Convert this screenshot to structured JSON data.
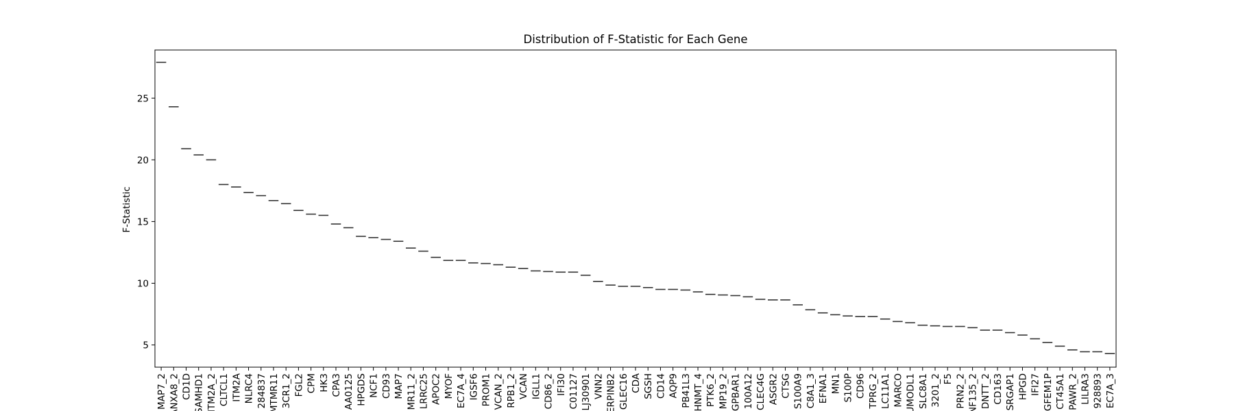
{
  "chart_data": {
    "type": "box",
    "title": "Distribution of F-Statistic for Each Gene",
    "xlabel": "",
    "ylabel": "F-Statistic",
    "ylim": [
      3.2,
      28.9
    ],
    "yticks": [
      5,
      10,
      15,
      20,
      25
    ],
    "grid": false,
    "legend": "none",
    "line_color": "#333333",
    "categories": [
      "MAP7_2",
      "ANXA8_2",
      "CD1D",
      "SAMHD1",
      "ITM2A_2",
      "CLTCL1",
      "ITM2A",
      "NLRC4",
      "284837",
      "MTMR11",
      "3CR1_2",
      "FGL2",
      "CPM",
      "HK3",
      "CPA3",
      "AA0125",
      "HPGDS",
      "NCF1",
      "CD93",
      "MAP7",
      "MR11_2",
      "LRRC25",
      "APOC2",
      "MYOF",
      "EC7A_4",
      "IGSF6",
      "PROM1",
      "VCAN_2",
      "RPB1_2",
      "VCAN",
      "IGLL1",
      "CD86_2",
      "IFI30",
      "C01127",
      "LJ30901",
      "VNN2",
      "ERPINB2",
      "GLEC16",
      "CDA",
      "SGSH",
      "CD14",
      "AQP9",
      "PB41L3",
      "HNMT_4",
      "PTK6_2",
      "MP19_2",
      "GPBAR1",
      "100A12",
      "CLEC4G",
      "ASGR2",
      "CTSG",
      "S100A9",
      "C8A1_3",
      "EFNA1",
      "MN1",
      "S100P",
      "CD96",
      "TPRG_2",
      "LC11A1",
      "MARCO",
      "UMODL1",
      "SLC8A1",
      "3201_2",
      "F5",
      "PRN2_2",
      "NF135_2",
      "DNTT_2",
      "CD163",
      "SRGAP1",
      "HPGD",
      "IFI27",
      "GFEM1P",
      "CT45A1",
      "PAWR_2",
      "LILRA3",
      "928893",
      "EC7A_3"
    ],
    "values": [
      27.9,
      24.3,
      20.9,
      20.4,
      20.0,
      18.0,
      17.8,
      17.35,
      17.1,
      16.7,
      16.45,
      15.9,
      15.6,
      15.5,
      14.8,
      14.5,
      13.8,
      13.7,
      13.55,
      13.4,
      12.85,
      12.6,
      12.1,
      11.85,
      11.85,
      11.65,
      11.6,
      11.5,
      11.3,
      11.2,
      11.0,
      10.95,
      10.9,
      10.9,
      10.65,
      10.15,
      9.85,
      9.75,
      9.75,
      9.65,
      9.5,
      9.5,
      9.45,
      9.3,
      9.1,
      9.05,
      9.0,
      8.9,
      8.7,
      8.65,
      8.65,
      8.25,
      7.85,
      7.6,
      7.45,
      7.35,
      7.3,
      7.3,
      7.1,
      6.9,
      6.8,
      6.6,
      6.55,
      6.5,
      6.5,
      6.4,
      6.2,
      6.2,
      6.0,
      5.8,
      5.5,
      5.2,
      4.9,
      4.6,
      4.45,
      4.45,
      4.3
    ]
  }
}
